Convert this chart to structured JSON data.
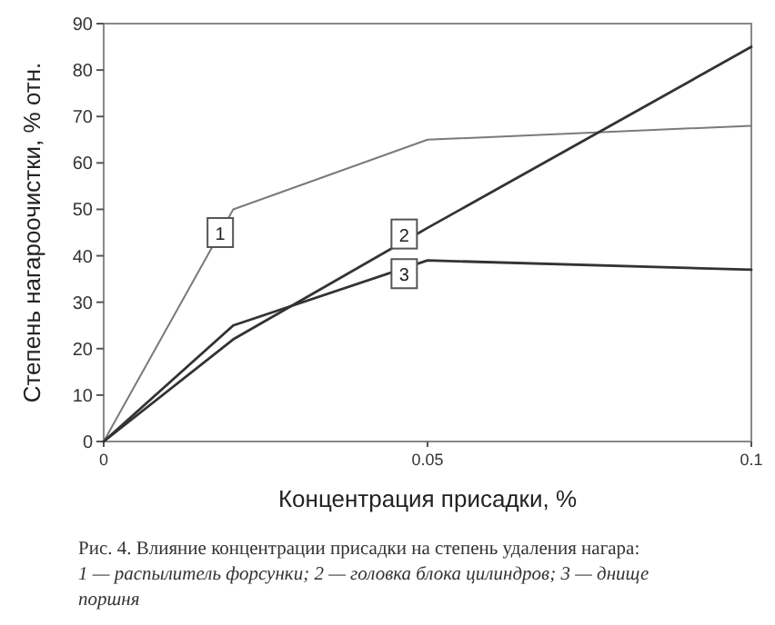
{
  "chart_data": {
    "type": "line",
    "xlabel": "Концентрация присадки, %",
    "ylabel": "Степень нагароочистки, % отн.",
    "xlim": [
      0,
      0.1
    ],
    "xticks": [
      0,
      0.05,
      0.1
    ],
    "ylim": [
      0,
      90
    ],
    "yticks": [
      0,
      10,
      20,
      30,
      40,
      50,
      60,
      70,
      80,
      90
    ],
    "x": [
      0,
      0.02,
      0.05,
      0.1
    ],
    "series": [
      {
        "name": "1",
        "color": "#7a7a7a",
        "values": [
          0,
          50,
          65,
          68
        ]
      },
      {
        "name": "2",
        "color": "#333333",
        "values": [
          0,
          22,
          46,
          85
        ]
      },
      {
        "name": "3",
        "color": "#333333",
        "values": [
          0,
          25,
          39,
          37
        ]
      }
    ],
    "grid": false,
    "marker": "none",
    "line_style": "solid",
    "annotations": [
      "Рис. 4. Влияние концентрации присадки на степень удаления нагара:",
      "1 — распылитель форсунки; 2 — головка блока цилиндров; 3 — днище поршня"
    ]
  }
}
